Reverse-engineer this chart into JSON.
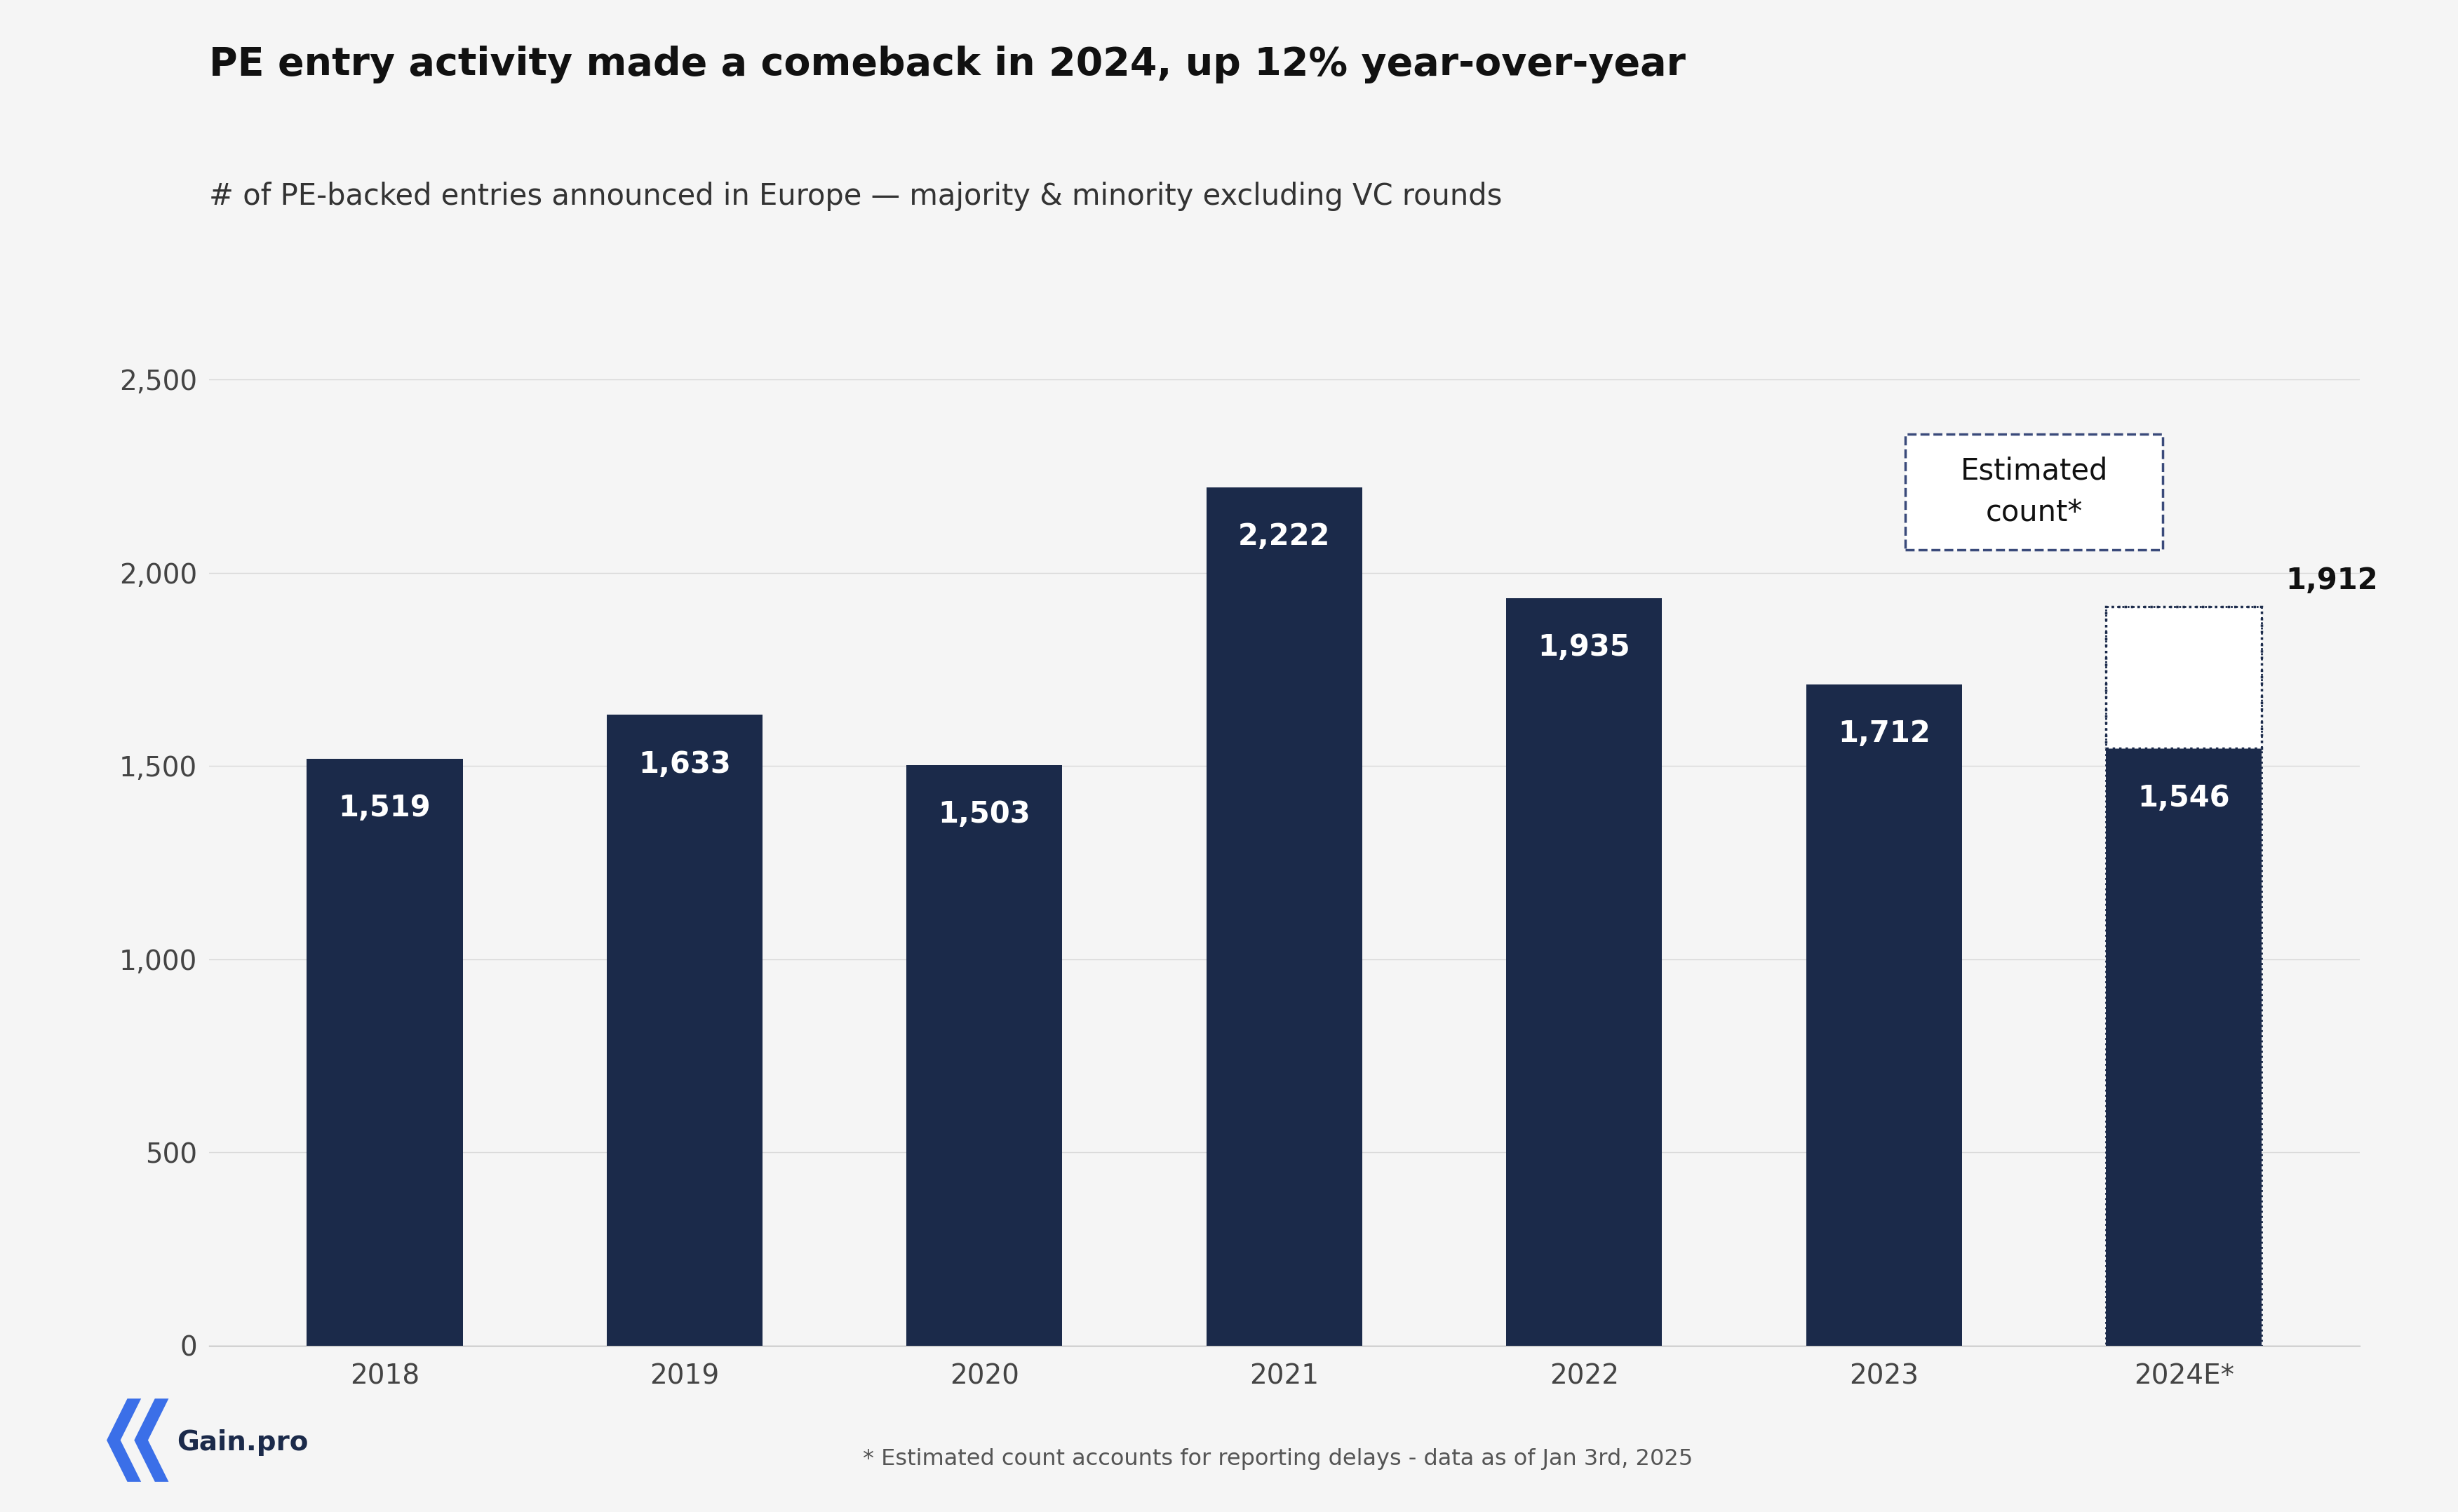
{
  "categories": [
    "2018",
    "2019",
    "2020",
    "2021",
    "2022",
    "2023",
    "2024E*"
  ],
  "values": [
    1519,
    1633,
    1503,
    2222,
    1935,
    1712,
    1546
  ],
  "estimated_value": 1912,
  "bar_color": "#1b2a4a",
  "background_color": "#f5f5f5",
  "title": "PE entry activity made a comeback in 2024, up 12% year-over-year",
  "subtitle": "# of PE-backed entries announced in Europe — majority & minority excluding VC rounds",
  "title_fontsize": 40,
  "subtitle_fontsize": 30,
  "ylim": [
    0,
    2700
  ],
  "yticks": [
    0,
    500,
    1000,
    1500,
    2000,
    2500
  ],
  "annotation_text": "Estimated\ncount*",
  "footnote": "* Estimated count accounts for reporting delays - data as of Jan 3rd, 2025",
  "grid_color": "#d8d8d8",
  "tick_fontsize": 28,
  "label_fontsize": 30,
  "value_label_color": "white"
}
